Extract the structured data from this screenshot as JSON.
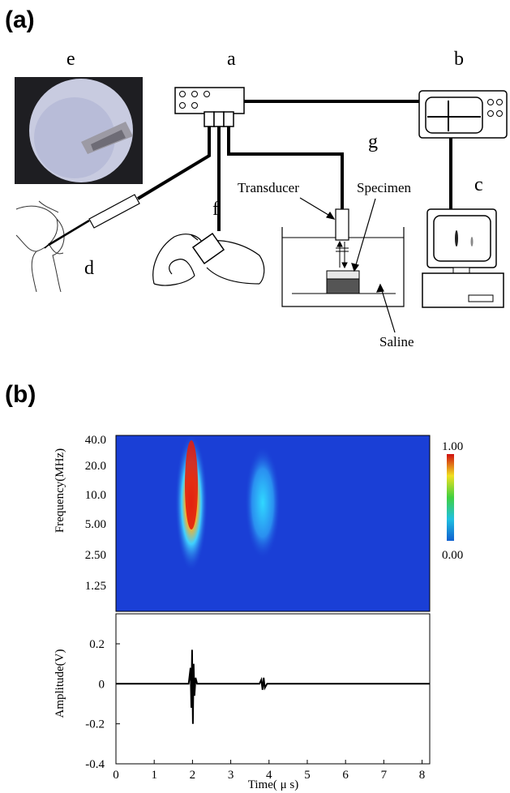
{
  "panel_a": {
    "label": "(a)",
    "letters": {
      "a": "a",
      "b": "b",
      "c": "c",
      "d": "d",
      "e": "e",
      "f": "f",
      "g": "g"
    },
    "annotations": {
      "transducer": "Transducer",
      "specimen": "Specimen",
      "saline": "Saline"
    }
  },
  "panel_b": {
    "label": "(b)",
    "spectrogram": {
      "ylabel": "Frequency(MHz)",
      "yticks": [
        "40.0",
        "20.0",
        "10.0",
        "5.00",
        "2.50",
        "1.25"
      ],
      "colorbar": {
        "max": "1.00",
        "min": "0.00"
      },
      "colors": {
        "background": "#1a3fd6",
        "low": "#2a6fe6",
        "high": "#ff2a1a"
      }
    }
  },
  "chart_data": {
    "type": "line",
    "xlabel": "Time( μ s)",
    "ylabel": "Amplitude(V)",
    "xlim": [
      0,
      8.2
    ],
    "ylim": [
      -0.4,
      0.35
    ],
    "xticks": [
      "0",
      "1",
      "2",
      "3",
      "4",
      "5",
      "6",
      "7",
      "8"
    ],
    "yticks": [
      "0.2",
      "0",
      "-0.2",
      "-0.4"
    ],
    "ytick_values": [
      0.2,
      0,
      -0.2,
      -0.4
    ],
    "series": [
      {
        "values": [
          [
            0,
            0
          ],
          [
            1.9,
            0
          ],
          [
            1.95,
            0.08
          ],
          [
            1.97,
            -0.12
          ],
          [
            1.99,
            0.17
          ],
          [
            2.01,
            -0.2
          ],
          [
            2.03,
            0.1
          ],
          [
            2.05,
            -0.06
          ],
          [
            2.08,
            0.03
          ],
          [
            2.12,
            0
          ],
          [
            3.75,
            0
          ],
          [
            3.8,
            0.02
          ],
          [
            3.83,
            -0.03
          ],
          [
            3.86,
            0.03
          ],
          [
            3.89,
            -0.02
          ],
          [
            3.95,
            0
          ],
          [
            8.2,
            0
          ]
        ]
      }
    ]
  }
}
